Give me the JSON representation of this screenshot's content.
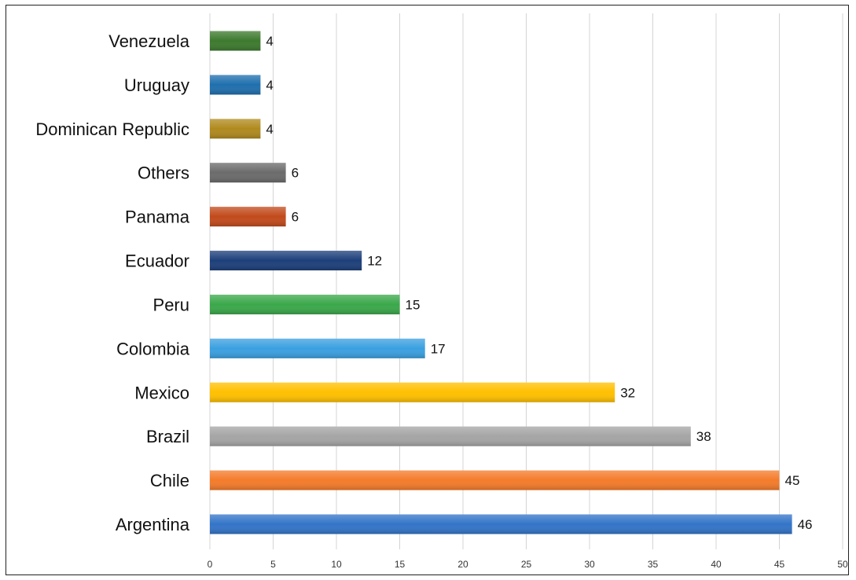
{
  "chart_data": {
    "type": "bar",
    "orientation": "horizontal",
    "categories": [
      "Venezuela",
      "Uruguay",
      "Dominican Republic",
      "Others",
      "Panama",
      "Ecuador",
      "Peru",
      "Colombia",
      "Mexico",
      "Brazil",
      "Chile",
      "Argentina"
    ],
    "values": [
      4,
      4,
      4,
      6,
      6,
      12,
      15,
      17,
      32,
      38,
      45,
      46
    ],
    "colors": [
      "#3d7a2e",
      "#1f6fae",
      "#b08a1e",
      "#6b6b6b",
      "#c24a1b",
      "#1d3f7a",
      "#3aa84a",
      "#3aa0e0",
      "#ffc000",
      "#a5a5a5",
      "#f47b2a",
      "#3374c8"
    ],
    "xlim": [
      0,
      50
    ],
    "xticks": [
      0,
      5,
      10,
      15,
      20,
      25,
      30,
      35,
      40,
      45,
      50
    ],
    "grid": true,
    "title": "",
    "xlabel": "",
    "ylabel": ""
  }
}
